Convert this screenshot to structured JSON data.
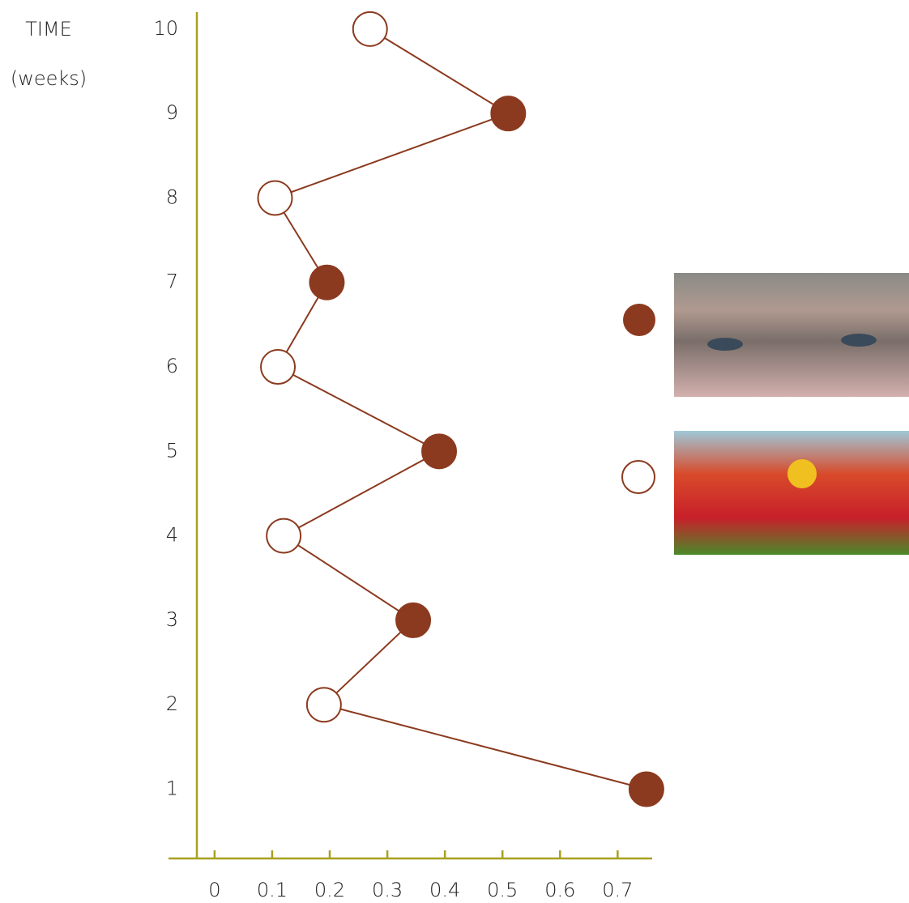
{
  "chart_data": {
    "type": "line",
    "ylabel": [
      "TIME",
      "(weeks)"
    ],
    "x": [
      0.75,
      0.19,
      0.345,
      0.12,
      0.39,
      0.11,
      0.195,
      0.105,
      0.51,
      0.27
    ],
    "y": [
      1,
      2,
      3,
      4,
      5,
      6,
      7,
      8,
      9,
      10
    ],
    "point_colors": [
      "#8b3a1f",
      "#ffffff",
      "#8b3a1f",
      "#ffffff",
      "#8b3a1f",
      "#ffffff",
      "#8b3a1f",
      "#ffffff",
      "#8b3a1f",
      "#ffffff"
    ],
    "color": "#8b3a1f",
    "axis_color": "#a8a020",
    "xlim": [
      -0.08,
      0.76
    ],
    "xticks": [
      0,
      0.1,
      0.2,
      0.3,
      0.4,
      0.5,
      0.6,
      0.7
    ],
    "ylim": [
      0.18,
      10.2
    ],
    "yticks": [
      1,
      2,
      3,
      4,
      5,
      6,
      7,
      8,
      9,
      10
    ]
  }
}
